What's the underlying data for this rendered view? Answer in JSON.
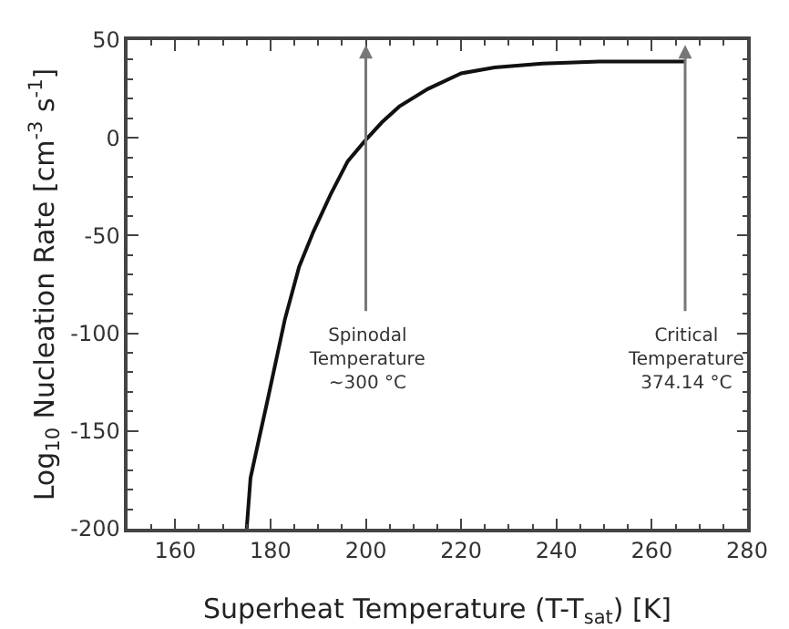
{
  "chart_data": {
    "type": "line",
    "xlabel": "Superheat Temperature (T-T$_{sat}$) [K]",
    "ylabel": "Log$_{10}$ Nucleation Rate [cm$^{-3}$ s$^{-1}$]",
    "x": [
      175,
      175.8,
      177.5,
      179.4,
      183,
      186,
      189,
      192.6,
      196.2,
      200,
      203.4,
      207,
      213,
      220,
      227,
      237,
      249,
      267
    ],
    "series": [
      {
        "color": "#111111",
        "values": [
          -200,
          -174,
          -155,
          -134,
          -93,
          -66,
          -48,
          -29,
          -12,
          -1,
          8,
          16,
          25,
          33,
          36,
          38,
          39,
          39
        ]
      }
    ],
    "xlim": [
      150,
      280
    ],
    "xticks": [
      160,
      180,
      200,
      220,
      240,
      260,
      280
    ],
    "ylim": [
      -200,
      50
    ],
    "yticks": [
      -200,
      -150,
      -100,
      -50,
      0,
      50
    ],
    "grid": false,
    "marker": "none",
    "line_style": "solid",
    "ref_lines": [
      {
        "axis": "x",
        "value": 200,
        "label": "Spinodal\nTemperature\n~300 °C",
        "color": "#777777"
      },
      {
        "axis": "x",
        "value": 267,
        "label": "Critical\nTemperature\n374.14 °C",
        "color": "#777777"
      }
    ]
  }
}
